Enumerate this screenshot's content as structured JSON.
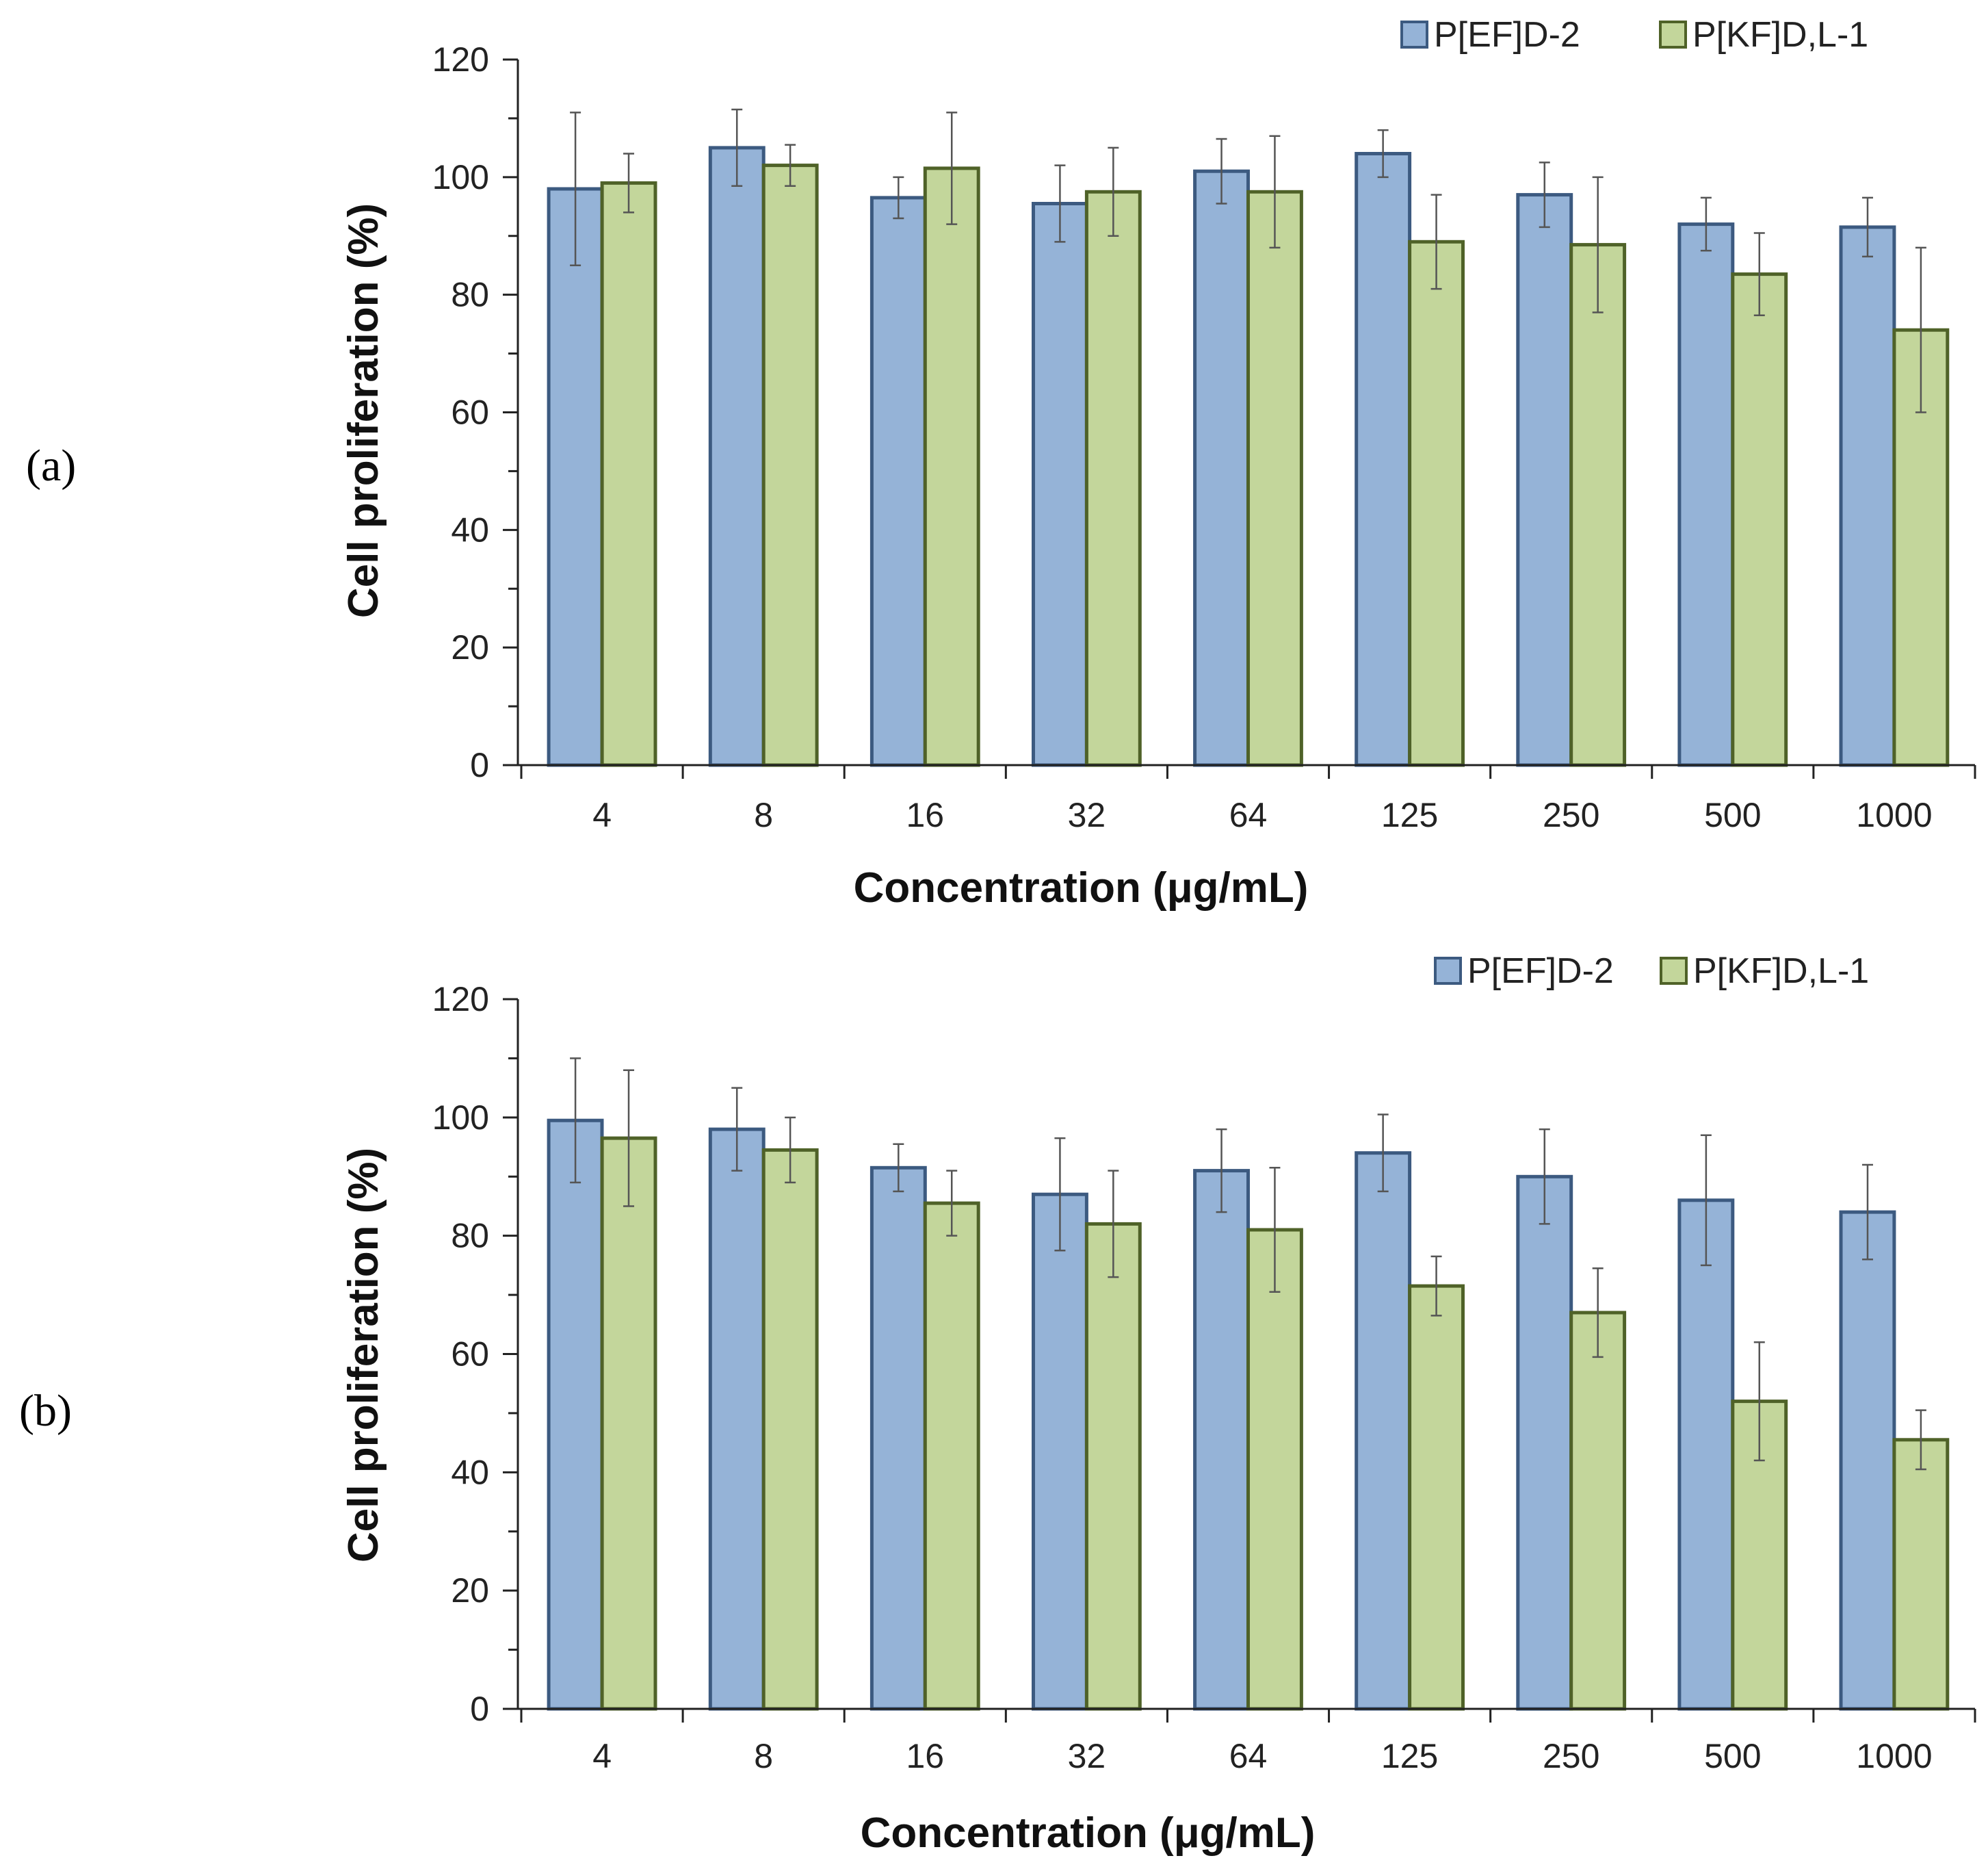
{
  "chart_data": [
    {
      "type": "bar",
      "panel_label": "(a)",
      "xlabel": "Concentration (μg/mL)",
      "ylabel": "Cell proliferation (%)",
      "ylim": [
        0,
        120
      ],
      "yticks": [
        "0",
        "20",
        "40",
        "60",
        "80",
        "100",
        "120"
      ],
      "categories": [
        "4",
        "8",
        "16",
        "32",
        "64",
        "125",
        "250",
        "500",
        "1000"
      ],
      "legend_position": "top-right",
      "series": [
        {
          "name": "P[EF]D-2",
          "color": "#95b3d7",
          "edge": "#3c5a80",
          "values": [
            98,
            105,
            96.5,
            95.5,
            101,
            104,
            97,
            92,
            91.5
          ],
          "errors": [
            13,
            6.5,
            3.5,
            6.5,
            5.5,
            4,
            5.5,
            4.5,
            5
          ]
        },
        {
          "name": "P[KF]D,L-1",
          "color": "#c3d69b",
          "edge": "#4f6228",
          "values": [
            99,
            102,
            101.5,
            97.5,
            97.5,
            89,
            88.5,
            83.5,
            74
          ],
          "errors": [
            5,
            3.5,
            9.5,
            7.5,
            9.5,
            8,
            11.5,
            7,
            14
          ]
        }
      ]
    },
    {
      "type": "bar",
      "panel_label": "(b)",
      "xlabel": "Concentration (μg/mL)",
      "ylabel": "Cell proliferation (%)",
      "ylim": [
        0,
        120
      ],
      "yticks": [
        "0",
        "20",
        "40",
        "60",
        "80",
        "100",
        "120"
      ],
      "categories": [
        "4",
        "8",
        "16",
        "32",
        "64",
        "125",
        "250",
        "500",
        "1000"
      ],
      "legend_position": "top-right",
      "series": [
        {
          "name": "P[EF]D-2",
          "color": "#95b3d7",
          "edge": "#3c5a80",
          "values": [
            99.5,
            98,
            91.5,
            87,
            91,
            94,
            90,
            86,
            84
          ],
          "errors": [
            10.5,
            7,
            4,
            9.5,
            7,
            6.5,
            8,
            11,
            8
          ]
        },
        {
          "name": "P[KF]D,L-1",
          "color": "#c3d69b",
          "edge": "#4f6228",
          "values": [
            96.5,
            94.5,
            85.5,
            82,
            81,
            71.5,
            67,
            52,
            45.5
          ],
          "errors": [
            11.5,
            5.5,
            5.5,
            9,
            10.5,
            5,
            7.5,
            10,
            5
          ]
        }
      ]
    }
  ]
}
